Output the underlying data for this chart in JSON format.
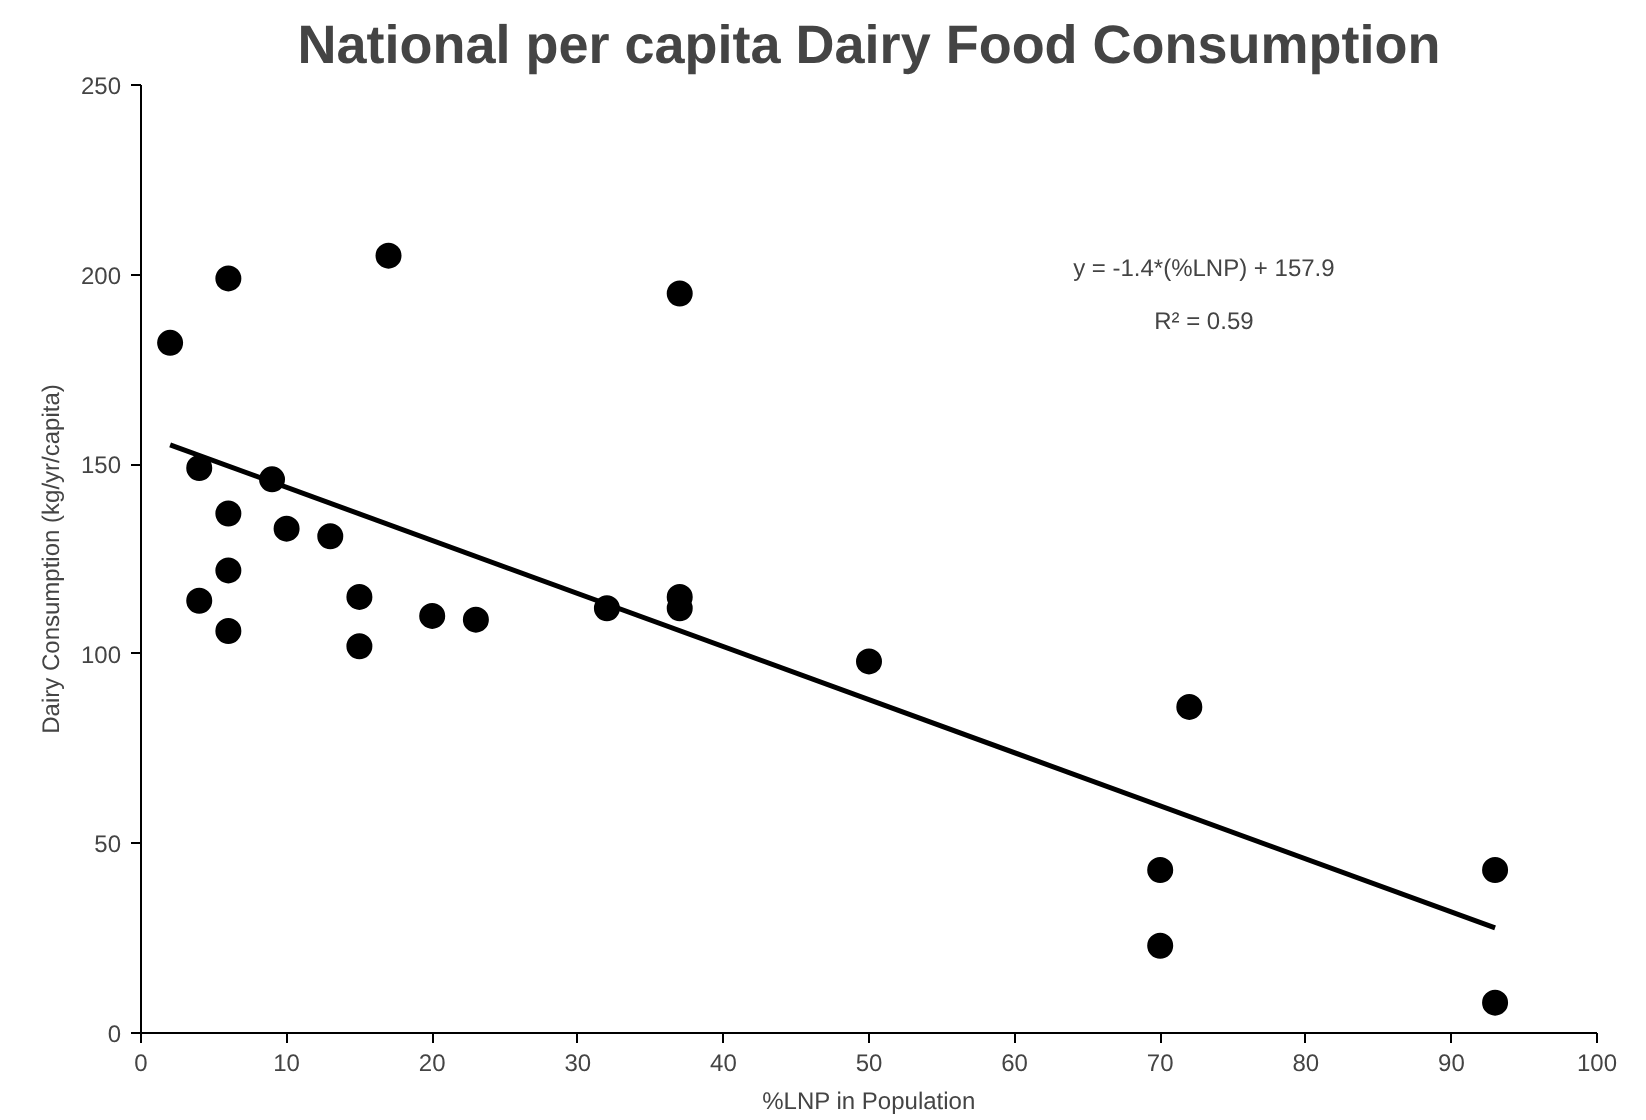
{
  "chart_data": {
    "type": "scatter",
    "title": "National per capita Dairy Food Consumption",
    "xlabel": "%LNP in Population",
    "ylabel": "Dairy Consumption (kg/yr/capita)",
    "xlim": [
      0,
      100
    ],
    "ylim": [
      0,
      250
    ],
    "xticks": [
      0,
      10,
      20,
      30,
      40,
      50,
      60,
      70,
      80,
      90,
      100
    ],
    "yticks": [
      0,
      50,
      100,
      150,
      200,
      250
    ],
    "grid": false,
    "marker": "circle",
    "line_style": "solid",
    "annotations": [
      "y = -1.4*(%LNP) + 157.9",
      "R² = 0.59"
    ],
    "series": [
      {
        "color": "#000000",
        "x": [
          2,
          4,
          4,
          6,
          6,
          6,
          6,
          9,
          10,
          13,
          15,
          15,
          17,
          20,
          23,
          32,
          37,
          37,
          37,
          50,
          70,
          70,
          72,
          93,
          93
        ],
        "values": [
          182,
          149,
          114,
          137,
          199,
          122,
          106,
          146,
          133,
          131,
          115,
          102,
          205,
          110,
          109,
          112,
          195,
          115,
          112,
          98,
          43,
          23,
          86,
          43,
          8
        ]
      },
      {
        "type": "line",
        "marker": "none",
        "color": "#000000",
        "x": [
          2,
          93
        ],
        "values": [
          155.1,
          27.7
        ]
      }
    ]
  }
}
